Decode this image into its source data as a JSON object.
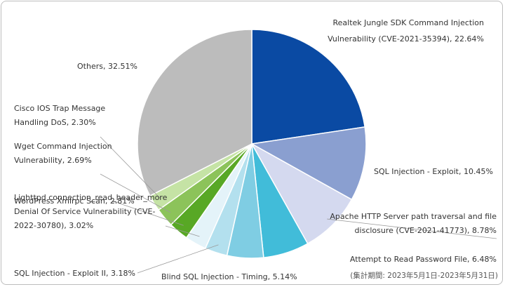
{
  "chart_data": {
    "type": "pie",
    "title": "",
    "note": "(集計期間: 2023年5月1日-2023年5月31日)",
    "slices": [
      {
        "name": "Realtek Jungle SDK Command Injection Vulnerability (CVE-2021-35394)",
        "value": 22.64,
        "color": "#0a4aa3",
        "label_lines": [
          "Realtek Jungle  SDK Command Injection",
          "Vulnerability (CVE-2021-35394),  22.64%"
        ]
      },
      {
        "name": "SQL Injection - Exploit",
        "value": 10.45,
        "color": "#8a9fd0",
        "label_lines": [
          "SQL Injection - Exploit, 10.45%"
        ]
      },
      {
        "name": "Apache HTTP Server path traversal and file disclosure (CVE-2021-41773)",
        "value": 8.78,
        "color": "#d4d9ef",
        "label_lines": [
          "Apache HTTP Server path traversal and file",
          "disclosure (CVE-2021-41773),  8.78%"
        ]
      },
      {
        "name": "Attempt to Read Password File",
        "value": 6.48,
        "color": "#41bcd9",
        "label_lines": [
          "Attempt to Read Password File, 6.48%"
        ]
      },
      {
        "name": "Blind SQL Injection - Timing",
        "value": 5.14,
        "color": "#7fcde3",
        "label_lines": [
          "Blind SQL Injection - Timing, 5.14%"
        ]
      },
      {
        "name": "SQL Injection - Exploit II",
        "value": 3.18,
        "color": "#b3e0ee",
        "label_lines": [
          "SQL Injection - Exploit II, 3.18%"
        ]
      },
      {
        "name": "Lighttpd connection_read_header_more Denial Of Service Vulnerability (CVE-2022-30780)",
        "value": 3.02,
        "color": "#e4f3f9",
        "label_lines": [
          "Lighttpd connection_read_header_more",
          "Denial Of Service Vulnerability (CVE-",
          "2022-30780),  3.02%"
        ]
      },
      {
        "name": "WordPress Xmlrpc Scan",
        "value": 2.81,
        "color": "#58a825",
        "label_lines": [
          "WordPress Xmlrpc Scan, 2.81%"
        ]
      },
      {
        "name": "Wget Command Injection Vulnerability",
        "value": 2.69,
        "color": "#8cc35a",
        "label_lines": [
          "Wget Command Injection",
          "Vulnerability, 2.69%"
        ]
      },
      {
        "name": "Cisco IOS Trap Message Handling DoS",
        "value": 2.3,
        "color": "#c5e3a5",
        "label_lines": [
          "Cisco IOS Trap Message",
          "Handling DoS, 2.30%"
        ]
      },
      {
        "name": "Others",
        "value": 32.51,
        "color": "#bcbcbc",
        "label_lines": [
          "Others, 32.51%"
        ]
      }
    ]
  }
}
